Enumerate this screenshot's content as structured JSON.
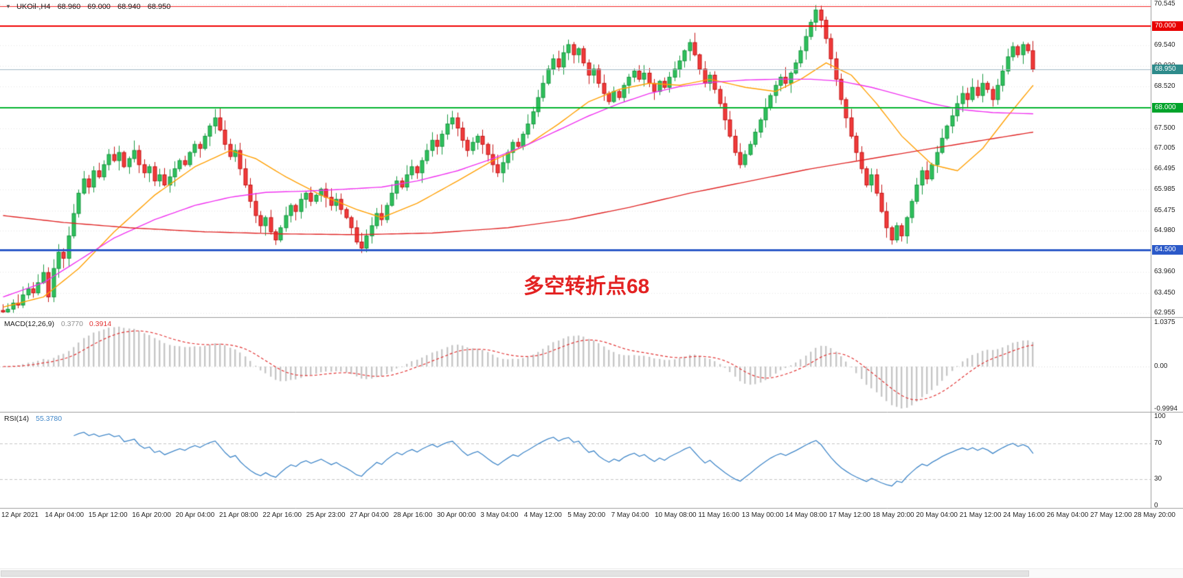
{
  "chart_data": {
    "type": "candlestick",
    "symbol_label": "UKOil-,H4",
    "timeframe": "H4",
    "ohlc": {
      "open": "68.960",
      "high": "69.000",
      "low": "68.940",
      "close": "68.950"
    },
    "icons": {
      "chart_menu_icon": "▼"
    },
    "price_axis": {
      "max": 70.545,
      "min": 62.955,
      "ticks": [
        "70.545",
        "69.540",
        "69.030",
        "68.520",
        "67.500",
        "67.005",
        "66.495",
        "65.985",
        "65.475",
        "64.980",
        "63.960",
        "63.450",
        "62.955"
      ]
    },
    "levels": [
      {
        "price": 70.5,
        "color": "#f22222",
        "width": 1
      },
      {
        "price": 70.0,
        "color": "#f00000",
        "width": 2,
        "badge": "70.000",
        "badge_color": "#e80000"
      },
      {
        "price": 68.95,
        "color": "#9fb6c4",
        "width": 1,
        "badge": "68.950",
        "badge_color": "#2e8b8b"
      },
      {
        "price": 68.0,
        "color": "#00b22d",
        "width": 2,
        "badge": "68.000",
        "badge_color": "#00a32a"
      },
      {
        "price": 64.5,
        "color": "#2b59c8",
        "width": 3,
        "badge": "64.500",
        "badge_color": "#2b59c8"
      }
    ],
    "closes": [
      62.98,
      63.05,
      63.2,
      63.15,
      63.4,
      63.55,
      63.45,
      63.7,
      63.95,
      63.35,
      64.05,
      64.45,
      64.3,
      64.85,
      65.4,
      65.9,
      66.25,
      66.05,
      66.45,
      66.3,
      66.6,
      66.85,
      66.7,
      66.9,
      66.55,
      66.75,
      66.95,
      66.6,
      66.4,
      66.55,
      66.2,
      66.35,
      66.1,
      66.3,
      66.5,
      66.7,
      66.6,
      66.9,
      67.1,
      67.0,
      67.3,
      67.55,
      67.75,
      67.45,
      67.1,
      66.8,
      66.95,
      66.5,
      66.1,
      65.7,
      65.35,
      65.1,
      65.3,
      64.95,
      64.75,
      65.05,
      65.35,
      65.6,
      65.45,
      65.75,
      65.9,
      65.7,
      65.85,
      66.0,
      65.8,
      65.6,
      65.75,
      65.5,
      65.3,
      65.05,
      64.7,
      64.55,
      64.85,
      65.1,
      65.4,
      65.25,
      65.6,
      65.9,
      66.2,
      66.05,
      66.35,
      66.55,
      66.4,
      66.7,
      66.95,
      67.2,
      67.05,
      67.35,
      67.6,
      67.75,
      67.5,
      67.2,
      66.95,
      67.15,
      67.3,
      67.1,
      66.85,
      66.6,
      66.4,
      66.65,
      66.9,
      67.15,
      67.05,
      67.35,
      67.6,
      67.9,
      68.25,
      68.6,
      68.95,
      69.2,
      69.0,
      69.35,
      69.55,
      69.3,
      69.45,
      69.1,
      68.8,
      68.95,
      68.6,
      68.35,
      68.15,
      68.4,
      68.25,
      68.55,
      68.75,
      68.9,
      68.7,
      68.85,
      68.6,
      68.4,
      68.65,
      68.5,
      68.75,
      68.95,
      69.15,
      69.4,
      69.6,
      69.3,
      68.95,
      68.6,
      68.8,
      68.45,
      68.1,
      67.7,
      67.3,
      66.9,
      66.6,
      66.85,
      67.1,
      67.4,
      67.7,
      68.0,
      68.3,
      68.55,
      68.75,
      68.6,
      68.85,
      69.1,
      69.4,
      69.75,
      70.1,
      70.4,
      70.15,
      69.7,
      69.2,
      68.7,
      68.2,
      67.75,
      67.3,
      66.9,
      66.5,
      66.1,
      66.35,
      65.9,
      65.45,
      65.05,
      64.75,
      65.1,
      64.85,
      65.3,
      65.7,
      66.1,
      66.45,
      66.25,
      66.6,
      66.9,
      67.25,
      67.55,
      67.8,
      68.1,
      68.35,
      68.2,
      68.5,
      68.3,
      68.6,
      68.45,
      68.2,
      68.55,
      68.9,
      69.25,
      69.5,
      69.3,
      69.55,
      69.4,
      68.95
    ],
    "candle_colors": {
      "up_fill": "#2fc05c",
      "up_stroke": "#14963e",
      "down_fill": "#f03b3b",
      "down_stroke": "#c41212"
    },
    "moving_averages": [
      {
        "name": "ma-fast",
        "color": "#ff9f00",
        "points": [
          [
            0,
            63.1
          ],
          [
            8,
            63.35
          ],
          [
            15,
            64.05
          ],
          [
            22,
            64.95
          ],
          [
            30,
            65.85
          ],
          [
            38,
            66.55
          ],
          [
            45,
            66.95
          ],
          [
            50,
            66.75
          ],
          [
            56,
            66.3
          ],
          [
            63,
            65.85
          ],
          [
            70,
            65.5
          ],
          [
            75,
            65.3
          ],
          [
            82,
            65.65
          ],
          [
            90,
            66.2
          ],
          [
            97,
            66.7
          ],
          [
            104,
            67.1
          ],
          [
            110,
            67.6
          ],
          [
            116,
            68.15
          ],
          [
            122,
            68.45
          ],
          [
            128,
            68.6
          ],
          [
            134,
            68.55
          ],
          [
            140,
            68.7
          ],
          [
            147,
            68.5
          ],
          [
            153,
            68.4
          ],
          [
            158,
            68.7
          ],
          [
            163,
            69.1
          ],
          [
            168,
            68.8
          ],
          [
            173,
            68.1
          ],
          [
            178,
            67.3
          ],
          [
            184,
            66.6
          ],
          [
            189,
            66.45
          ],
          [
            194,
            67.0
          ],
          [
            199,
            67.8
          ],
          [
            204,
            68.55
          ]
        ]
      },
      {
        "name": "ma-mid",
        "color": "#f02ff0",
        "points": [
          [
            0,
            63.35
          ],
          [
            8,
            63.7
          ],
          [
            15,
            64.25
          ],
          [
            22,
            64.8
          ],
          [
            30,
            65.25
          ],
          [
            38,
            65.6
          ],
          [
            45,
            65.8
          ],
          [
            52,
            65.92
          ],
          [
            60,
            65.95
          ],
          [
            68,
            66.0
          ],
          [
            75,
            66.05
          ],
          [
            82,
            66.2
          ],
          [
            90,
            66.45
          ],
          [
            97,
            66.75
          ],
          [
            104,
            67.1
          ],
          [
            110,
            67.45
          ],
          [
            116,
            67.8
          ],
          [
            122,
            68.1
          ],
          [
            128,
            68.35
          ],
          [
            134,
            68.52
          ],
          [
            140,
            68.62
          ],
          [
            147,
            68.68
          ],
          [
            153,
            68.7
          ],
          [
            160,
            68.7
          ],
          [
            166,
            68.65
          ],
          [
            172,
            68.5
          ],
          [
            178,
            68.3
          ],
          [
            184,
            68.1
          ],
          [
            190,
            67.95
          ],
          [
            196,
            67.88
          ],
          [
            204,
            67.85
          ]
        ]
      },
      {
        "name": "ma-slow",
        "color": "#e02222",
        "points": [
          [
            0,
            65.35
          ],
          [
            12,
            65.18
          ],
          [
            25,
            65.05
          ],
          [
            40,
            64.95
          ],
          [
            55,
            64.9
          ],
          [
            70,
            64.88
          ],
          [
            85,
            64.92
          ],
          [
            100,
            65.05
          ],
          [
            112,
            65.25
          ],
          [
            124,
            65.55
          ],
          [
            136,
            65.9
          ],
          [
            148,
            66.2
          ],
          [
            160,
            66.5
          ],
          [
            172,
            66.75
          ],
          [
            184,
            67.0
          ],
          [
            194,
            67.2
          ],
          [
            204,
            67.4
          ]
        ]
      }
    ],
    "annotation": {
      "text": "多空转折点68",
      "color": "#e32222"
    },
    "macd": {
      "label": "MACD(12,26,9)",
      "main_value": "0.3770",
      "signal_value": "0.3914",
      "axis_labels": [
        "1.0375",
        "0.00",
        "-0.9994"
      ],
      "histogram_color": "#c6c6c6",
      "signal_color": "#e23030"
    },
    "rsi": {
      "label": "RSI(14)",
      "value": "55.3780",
      "axis_labels": [
        "100",
        "70",
        "30",
        "0"
      ],
      "levels": [
        70,
        30
      ],
      "line_color": "#3d85c8"
    },
    "time_labels": [
      "12 Apr 2021",
      "14 Apr 04:00",
      "15 Apr 12:00",
      "16 Apr 20:00",
      "20 Apr 04:00",
      "21 Apr 08:00",
      "22 Apr 16:00",
      "25 Apr 23:00",
      "27 Apr 04:00",
      "28 Apr 16:00",
      "30 Apr 00:00",
      "3 May 04:00",
      "4 May 12:00",
      "5 May 20:00",
      "7 May 04:00",
      "10 May 08:00",
      "11 May 16:00",
      "13 May 00:00",
      "14 May 08:00",
      "17 May 12:00",
      "18 May 20:00",
      "20 May 04:00",
      "21 May 12:00",
      "24 May 16:00",
      "26 May 04:00",
      "27 May 12:00",
      "28 May 20:00"
    ]
  }
}
